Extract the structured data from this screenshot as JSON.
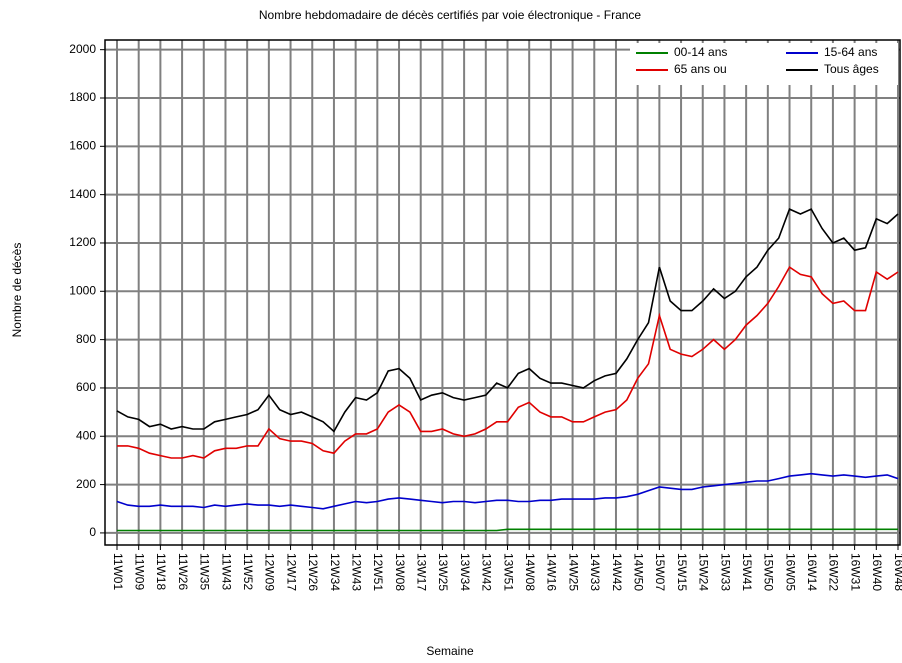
{
  "chart_data": {
    "type": "line",
    "title": "Nombre hebdomadaire de décès certifiés par voie électronique - France",
    "x_label": "Semaine",
    "y_label": "Nombre de décès",
    "categories": [
      "11W01",
      null,
      "11W09",
      null,
      "11W18",
      null,
      "11W26",
      null,
      "11W35",
      null,
      "11W43",
      null,
      "11W52",
      null,
      "12W09",
      null,
      "12W17",
      null,
      "12W26",
      null,
      "12W34",
      null,
      "12W43",
      null,
      "12W51",
      null,
      "13W08",
      null,
      "13W17",
      null,
      "13W25",
      null,
      "13W34",
      null,
      "13W42",
      null,
      "13W51",
      null,
      "14W08",
      null,
      "14W16",
      null,
      "14W25",
      null,
      "14W33",
      null,
      "14W42",
      null,
      "14W50",
      null,
      "15W07",
      null,
      "15W15",
      null,
      "15W24",
      null,
      "15W33",
      null,
      "15W41",
      null,
      "15W50",
      null,
      "16W05",
      null,
      "16W14",
      null,
      "16W22",
      null,
      "16W31",
      null,
      "16W40",
      null,
      "16W48"
    ],
    "series": [
      {
        "name": "00-14 ans",
        "color": "#008000",
        "values": [
          10,
          10,
          10,
          10,
          10,
          10,
          10,
          10,
          10,
          10,
          10,
          10,
          10,
          10,
          10,
          10,
          10,
          10,
          10,
          10,
          10,
          10,
          10,
          10,
          10,
          10,
          10,
          10,
          10,
          10,
          10,
          10,
          10,
          10,
          10,
          10,
          15,
          15,
          15,
          15,
          15,
          15,
          15,
          15,
          15,
          15,
          15,
          15,
          15,
          15,
          15,
          15,
          15,
          15,
          15,
          15,
          15,
          15,
          15,
          15,
          15,
          15,
          15,
          15,
          15,
          15,
          15,
          15,
          15,
          15,
          15,
          15,
          15
        ]
      },
      {
        "name": "15-64 ans",
        "color": "#0000cc",
        "values": [
          130,
          115,
          110,
          110,
          115,
          110,
          110,
          110,
          105,
          115,
          110,
          115,
          120,
          115,
          115,
          110,
          115,
          110,
          105,
          100,
          110,
          120,
          130,
          125,
          130,
          140,
          145,
          140,
          135,
          130,
          125,
          130,
          130,
          125,
          130,
          135,
          135,
          130,
          130,
          135,
          135,
          140,
          140,
          140,
          140,
          145,
          145,
          150,
          160,
          175,
          190,
          185,
          180,
          180,
          190,
          195,
          200,
          205,
          210,
          215,
          215,
          225,
          235,
          240,
          245,
          240,
          235,
          240,
          235,
          230,
          235,
          240,
          225
        ]
      },
      {
        "name": "65 ans ou",
        "color": "#e00000",
        "values": [
          360,
          360,
          350,
          330,
          320,
          310,
          310,
          320,
          310,
          340,
          350,
          350,
          360,
          360,
          430,
          390,
          380,
          380,
          370,
          340,
          330,
          380,
          410,
          410,
          430,
          500,
          530,
          500,
          420,
          420,
          430,
          410,
          400,
          410,
          430,
          460,
          460,
          520,
          540,
          500,
          480,
          480,
          460,
          460,
          480,
          500,
          510,
          550,
          640,
          700,
          900,
          760,
          740,
          730,
          760,
          800,
          760,
          800,
          860,
          900,
          950,
          1020,
          1100,
          1070,
          1060,
          990,
          950,
          960,
          920,
          920,
          1080,
          1050,
          1080
        ]
      },
      {
        "name": "Tous âges",
        "color": "#000000",
        "values": [
          505,
          480,
          470,
          440,
          450,
          430,
          440,
          430,
          430,
          460,
          470,
          480,
          490,
          510,
          570,
          510,
          490,
          500,
          480,
          460,
          420,
          500,
          560,
          550,
          580,
          670,
          680,
          640,
          550,
          570,
          580,
          560,
          550,
          560,
          570,
          620,
          600,
          660,
          680,
          640,
          620,
          620,
          610,
          600,
          630,
          650,
          660,
          720,
          800,
          870,
          1100,
          960,
          920,
          920,
          960,
          1010,
          970,
          1000,
          1060,
          1100,
          1170,
          1220,
          1340,
          1320,
          1340,
          1260,
          1200,
          1220,
          1170,
          1180,
          1300,
          1280,
          1320
        ]
      }
    ],
    "ylim": [
      -50,
      2040
    ],
    "yticks": [
      0,
      200,
      400,
      600,
      800,
      1000,
      1200,
      1400,
      1600,
      1800,
      2000
    ],
    "grid": true,
    "legend": "top-right"
  }
}
